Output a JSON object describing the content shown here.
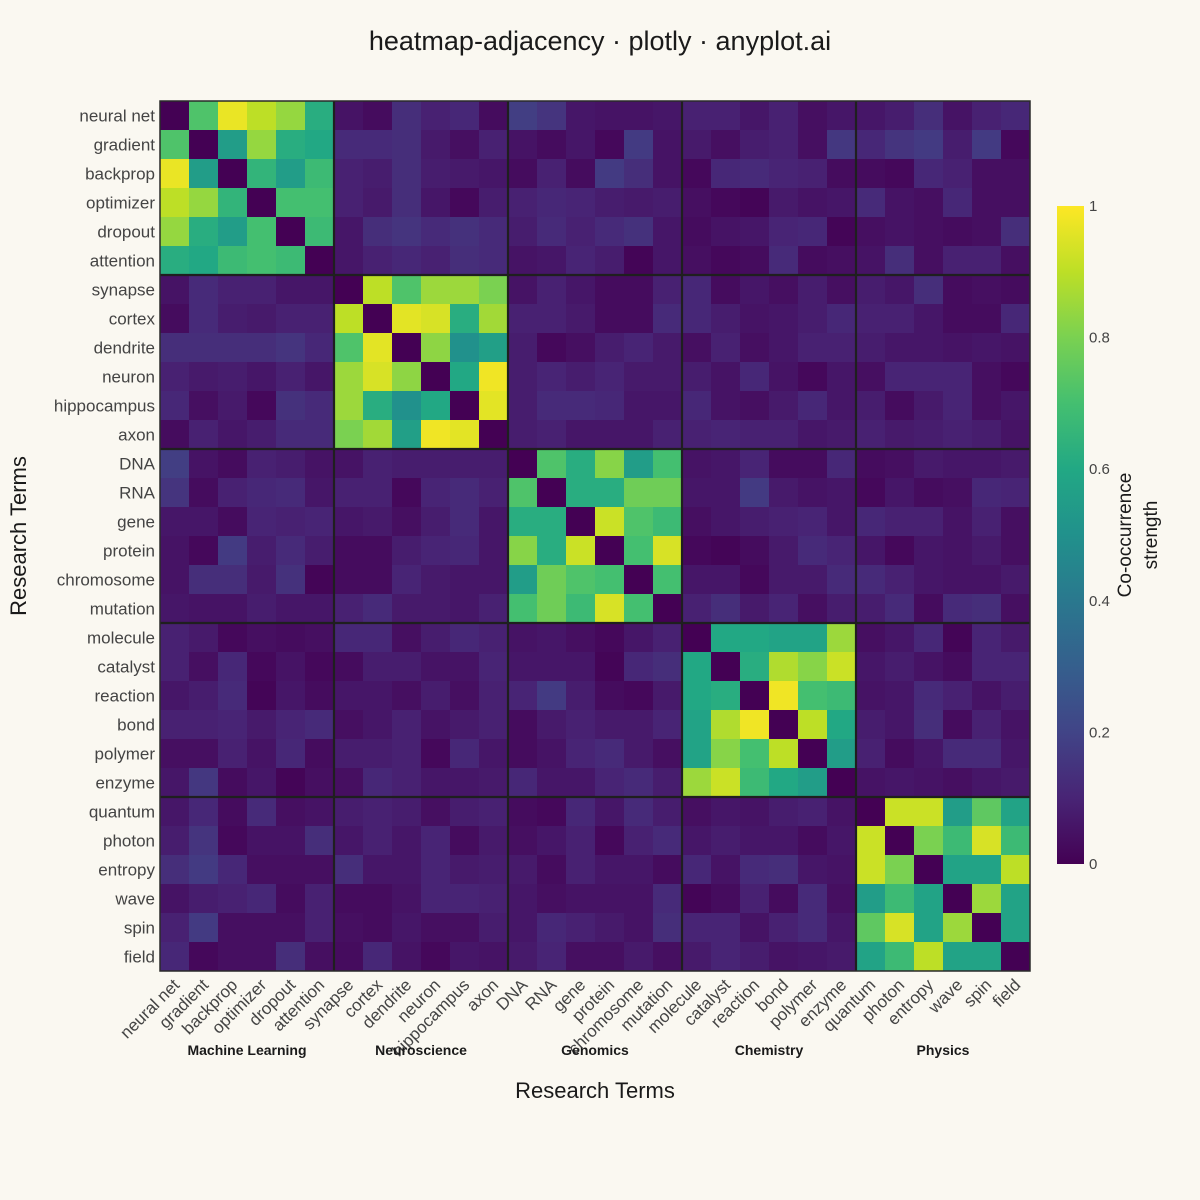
{
  "title": "heatmap-adjacency · plotly · anyplot.ai",
  "chart_data": {
    "type": "heatmap",
    "xlabel": "Research Terms",
    "ylabel": "Research Terms",
    "colorbar": {
      "title_lines": [
        "Co-occurrence",
        "strength"
      ],
      "range": [
        0,
        1
      ],
      "ticks": [
        "0",
        "0.2",
        "0.4",
        "0.6",
        "0.8",
        "1"
      ],
      "colorscale": "viridis"
    },
    "groups": [
      "Machine Learning",
      "Neuroscience",
      "Genomics",
      "Chemistry",
      "Physics"
    ],
    "labels": [
      "neural net",
      "gradient",
      "backprop",
      "optimizer",
      "dropout",
      "attention",
      "synapse",
      "cortex",
      "dendrite",
      "neuron",
      "hippocampus",
      "axon",
      "DNA",
      "RNA",
      "gene",
      "protein",
      "chromosome",
      "mutation",
      "molecule",
      "catalyst",
      "reaction",
      "bond",
      "polymer",
      "enzyme",
      "quantum",
      "photon",
      "entropy",
      "wave",
      "spin",
      "field"
    ],
    "values": [
      [
        0.0,
        0.72,
        0.97,
        0.9,
        0.84,
        0.62,
        0.05,
        0.03,
        0.13,
        0.09,
        0.11,
        0.03,
        0.18,
        0.15,
        0.06,
        0.05,
        0.05,
        0.06,
        0.09,
        0.09,
        0.06,
        0.09,
        0.04,
        0.06,
        0.06,
        0.08,
        0.13,
        0.05,
        0.09,
        0.11
      ],
      [
        0.72,
        0.0,
        0.55,
        0.84,
        0.62,
        0.6,
        0.12,
        0.12,
        0.13,
        0.07,
        0.04,
        0.09,
        0.05,
        0.03,
        0.06,
        0.02,
        0.17,
        0.05,
        0.07,
        0.04,
        0.08,
        0.09,
        0.04,
        0.16,
        0.11,
        0.15,
        0.17,
        0.08,
        0.17,
        0.02
      ],
      [
        0.97,
        0.55,
        0.0,
        0.65,
        0.55,
        0.68,
        0.09,
        0.08,
        0.13,
        0.08,
        0.07,
        0.06,
        0.03,
        0.09,
        0.03,
        0.17,
        0.13,
        0.05,
        0.02,
        0.11,
        0.12,
        0.1,
        0.09,
        0.03,
        0.03,
        0.02,
        0.11,
        0.09,
        0.04,
        0.04
      ],
      [
        0.9,
        0.84,
        0.65,
        0.0,
        0.7,
        0.7,
        0.09,
        0.07,
        0.13,
        0.06,
        0.02,
        0.08,
        0.09,
        0.11,
        0.1,
        0.08,
        0.07,
        0.08,
        0.04,
        0.02,
        0.01,
        0.07,
        0.05,
        0.06,
        0.12,
        0.05,
        0.04,
        0.11,
        0.04,
        0.04
      ],
      [
        0.84,
        0.62,
        0.55,
        0.7,
        0.0,
        0.68,
        0.06,
        0.13,
        0.15,
        0.12,
        0.14,
        0.12,
        0.08,
        0.12,
        0.09,
        0.12,
        0.14,
        0.06,
        0.03,
        0.05,
        0.06,
        0.1,
        0.11,
        0.01,
        0.04,
        0.05,
        0.04,
        0.03,
        0.04,
        0.13
      ],
      [
        0.62,
        0.6,
        0.68,
        0.7,
        0.68,
        0.0,
        0.06,
        0.09,
        0.11,
        0.09,
        0.13,
        0.12,
        0.05,
        0.06,
        0.1,
        0.08,
        0.01,
        0.06,
        0.04,
        0.02,
        0.03,
        0.12,
        0.03,
        0.04,
        0.05,
        0.13,
        0.04,
        0.09,
        0.09,
        0.04
      ],
      [
        0.05,
        0.12,
        0.09,
        0.09,
        0.06,
        0.06,
        0.0,
        0.9,
        0.72,
        0.85,
        0.85,
        0.8,
        0.05,
        0.09,
        0.06,
        0.03,
        0.03,
        0.09,
        0.11,
        0.03,
        0.06,
        0.04,
        0.08,
        0.04,
        0.08,
        0.06,
        0.13,
        0.03,
        0.04,
        0.03
      ],
      [
        0.03,
        0.12,
        0.08,
        0.07,
        0.09,
        0.09,
        0.9,
        0.0,
        0.96,
        0.94,
        0.62,
        0.86,
        0.09,
        0.09,
        0.07,
        0.03,
        0.03,
        0.12,
        0.11,
        0.08,
        0.05,
        0.06,
        0.08,
        0.11,
        0.09,
        0.09,
        0.06,
        0.03,
        0.03,
        0.11
      ],
      [
        0.13,
        0.13,
        0.13,
        0.13,
        0.15,
        0.11,
        0.72,
        0.96,
        0.0,
        0.83,
        0.5,
        0.56,
        0.08,
        0.02,
        0.04,
        0.08,
        0.1,
        0.07,
        0.04,
        0.09,
        0.04,
        0.06,
        0.09,
        0.09,
        0.08,
        0.06,
        0.06,
        0.05,
        0.06,
        0.05
      ],
      [
        0.09,
        0.07,
        0.08,
        0.06,
        0.09,
        0.06,
        0.85,
        0.94,
        0.83,
        0.0,
        0.6,
        0.98,
        0.08,
        0.1,
        0.08,
        0.1,
        0.07,
        0.07,
        0.08,
        0.05,
        0.11,
        0.05,
        0.02,
        0.06,
        0.04,
        0.1,
        0.1,
        0.1,
        0.04,
        0.02
      ],
      [
        0.11,
        0.04,
        0.07,
        0.02,
        0.14,
        0.12,
        0.85,
        0.62,
        0.5,
        0.6,
        0.0,
        0.96,
        0.08,
        0.12,
        0.12,
        0.11,
        0.06,
        0.06,
        0.11,
        0.05,
        0.04,
        0.07,
        0.11,
        0.06,
        0.08,
        0.03,
        0.07,
        0.1,
        0.04,
        0.06
      ],
      [
        0.03,
        0.09,
        0.06,
        0.08,
        0.12,
        0.12,
        0.8,
        0.86,
        0.56,
        0.98,
        0.96,
        0.0,
        0.08,
        0.09,
        0.06,
        0.06,
        0.06,
        0.09,
        0.09,
        0.1,
        0.09,
        0.09,
        0.06,
        0.07,
        0.09,
        0.07,
        0.08,
        0.09,
        0.08,
        0.05
      ],
      [
        0.18,
        0.05,
        0.03,
        0.09,
        0.08,
        0.05,
        0.05,
        0.09,
        0.08,
        0.08,
        0.08,
        0.08,
        0.0,
        0.72,
        0.62,
        0.82,
        0.55,
        0.7,
        0.05,
        0.06,
        0.1,
        0.03,
        0.03,
        0.11,
        0.03,
        0.04,
        0.07,
        0.06,
        0.06,
        0.07
      ],
      [
        0.15,
        0.03,
        0.09,
        0.11,
        0.12,
        0.06,
        0.09,
        0.09,
        0.02,
        0.1,
        0.12,
        0.09,
        0.72,
        0.0,
        0.62,
        0.62,
        0.78,
        0.78,
        0.06,
        0.06,
        0.17,
        0.07,
        0.05,
        0.06,
        0.02,
        0.06,
        0.03,
        0.04,
        0.11,
        0.1
      ],
      [
        0.06,
        0.06,
        0.03,
        0.1,
        0.09,
        0.1,
        0.06,
        0.07,
        0.04,
        0.08,
        0.12,
        0.06,
        0.62,
        0.62,
        0.0,
        0.92,
        0.72,
        0.68,
        0.04,
        0.06,
        0.08,
        0.09,
        0.1,
        0.06,
        0.11,
        0.09,
        0.09,
        0.05,
        0.09,
        0.04
      ],
      [
        0.05,
        0.02,
        0.17,
        0.08,
        0.12,
        0.08,
        0.03,
        0.03,
        0.08,
        0.1,
        0.11,
        0.06,
        0.82,
        0.62,
        0.92,
        0.0,
        0.7,
        0.94,
        0.02,
        0.01,
        0.03,
        0.07,
        0.12,
        0.1,
        0.06,
        0.02,
        0.06,
        0.05,
        0.07,
        0.04
      ],
      [
        0.05,
        0.13,
        0.13,
        0.07,
        0.14,
        0.01,
        0.03,
        0.03,
        0.1,
        0.07,
        0.06,
        0.06,
        0.55,
        0.78,
        0.72,
        0.7,
        0.0,
        0.7,
        0.06,
        0.06,
        0.02,
        0.07,
        0.07,
        0.12,
        0.12,
        0.09,
        0.06,
        0.05,
        0.05,
        0.07
      ],
      [
        0.06,
        0.05,
        0.05,
        0.08,
        0.06,
        0.06,
        0.09,
        0.12,
        0.07,
        0.07,
        0.06,
        0.09,
        0.7,
        0.78,
        0.68,
        0.94,
        0.7,
        0.0,
        0.09,
        0.13,
        0.07,
        0.1,
        0.04,
        0.08,
        0.08,
        0.12,
        0.03,
        0.12,
        0.13,
        0.04
      ],
      [
        0.09,
        0.07,
        0.02,
        0.04,
        0.03,
        0.04,
        0.11,
        0.11,
        0.04,
        0.08,
        0.11,
        0.09,
        0.05,
        0.06,
        0.04,
        0.02,
        0.06,
        0.09,
        0.0,
        0.6,
        0.6,
        0.58,
        0.58,
        0.85,
        0.04,
        0.06,
        0.11,
        0.01,
        0.1,
        0.07
      ],
      [
        0.09,
        0.04,
        0.11,
        0.02,
        0.05,
        0.02,
        0.03,
        0.08,
        0.08,
        0.05,
        0.05,
        0.1,
        0.06,
        0.06,
        0.06,
        0.01,
        0.11,
        0.13,
        0.6,
        0.0,
        0.62,
        0.88,
        0.82,
        0.92,
        0.06,
        0.08,
        0.05,
        0.03,
        0.1,
        0.1
      ],
      [
        0.06,
        0.08,
        0.12,
        0.01,
        0.06,
        0.03,
        0.06,
        0.06,
        0.04,
        0.08,
        0.04,
        0.09,
        0.1,
        0.17,
        0.08,
        0.03,
        0.02,
        0.07,
        0.6,
        0.62,
        0.0,
        0.98,
        0.7,
        0.68,
        0.05,
        0.06,
        0.12,
        0.09,
        0.05,
        0.08
      ],
      [
        0.09,
        0.09,
        0.1,
        0.07,
        0.1,
        0.12,
        0.04,
        0.06,
        0.09,
        0.05,
        0.07,
        0.09,
        0.03,
        0.07,
        0.09,
        0.07,
        0.07,
        0.1,
        0.58,
        0.88,
        0.98,
        0.0,
        0.9,
        0.6,
        0.08,
        0.06,
        0.13,
        0.03,
        0.09,
        0.05
      ],
      [
        0.04,
        0.04,
        0.09,
        0.05,
        0.11,
        0.03,
        0.08,
        0.08,
        0.09,
        0.02,
        0.11,
        0.06,
        0.03,
        0.05,
        0.1,
        0.12,
        0.07,
        0.04,
        0.58,
        0.82,
        0.7,
        0.9,
        0.0,
        0.55,
        0.09,
        0.03,
        0.06,
        0.12,
        0.12,
        0.06
      ],
      [
        0.06,
        0.16,
        0.03,
        0.06,
        0.01,
        0.04,
        0.04,
        0.11,
        0.09,
        0.06,
        0.06,
        0.07,
        0.11,
        0.06,
        0.06,
        0.1,
        0.12,
        0.08,
        0.85,
        0.92,
        0.68,
        0.6,
        0.55,
        0.0,
        0.05,
        0.06,
        0.05,
        0.04,
        0.06,
        0.07
      ],
      [
        0.06,
        0.11,
        0.03,
        0.12,
        0.04,
        0.05,
        0.08,
        0.09,
        0.08,
        0.04,
        0.08,
        0.09,
        0.03,
        0.02,
        0.11,
        0.06,
        0.12,
        0.08,
        0.04,
        0.06,
        0.05,
        0.08,
        0.09,
        0.05,
        0.0,
        0.92,
        0.92,
        0.55,
        0.75,
        0.58
      ],
      [
        0.08,
        0.15,
        0.02,
        0.05,
        0.05,
        0.13,
        0.06,
        0.09,
        0.06,
        0.1,
        0.03,
        0.07,
        0.04,
        0.06,
        0.09,
        0.02,
        0.09,
        0.12,
        0.06,
        0.08,
        0.06,
        0.06,
        0.03,
        0.06,
        0.92,
        0.0,
        0.8,
        0.68,
        0.94,
        0.68
      ],
      [
        0.13,
        0.17,
        0.11,
        0.04,
        0.04,
        0.04,
        0.13,
        0.06,
        0.06,
        0.1,
        0.07,
        0.08,
        0.07,
        0.03,
        0.09,
        0.06,
        0.06,
        0.03,
        0.11,
        0.05,
        0.12,
        0.13,
        0.06,
        0.05,
        0.92,
        0.8,
        0.0,
        0.58,
        0.58,
        0.9
      ],
      [
        0.05,
        0.08,
        0.09,
        0.11,
        0.03,
        0.09,
        0.03,
        0.03,
        0.05,
        0.1,
        0.1,
        0.09,
        0.06,
        0.04,
        0.05,
        0.05,
        0.05,
        0.12,
        0.01,
        0.03,
        0.09,
        0.03,
        0.12,
        0.04,
        0.55,
        0.68,
        0.58,
        0.0,
        0.85,
        0.58
      ],
      [
        0.09,
        0.17,
        0.04,
        0.04,
        0.04,
        0.09,
        0.04,
        0.03,
        0.06,
        0.04,
        0.04,
        0.08,
        0.06,
        0.11,
        0.09,
        0.07,
        0.05,
        0.13,
        0.1,
        0.1,
        0.05,
        0.09,
        0.12,
        0.06,
        0.75,
        0.94,
        0.58,
        0.85,
        0.0,
        0.58
      ],
      [
        0.11,
        0.02,
        0.04,
        0.04,
        0.13,
        0.04,
        0.03,
        0.11,
        0.05,
        0.02,
        0.06,
        0.05,
        0.07,
        0.1,
        0.04,
        0.04,
        0.07,
        0.04,
        0.07,
        0.1,
        0.08,
        0.05,
        0.06,
        0.07,
        0.58,
        0.68,
        0.9,
        0.58,
        0.58,
        0.0
      ]
    ]
  }
}
